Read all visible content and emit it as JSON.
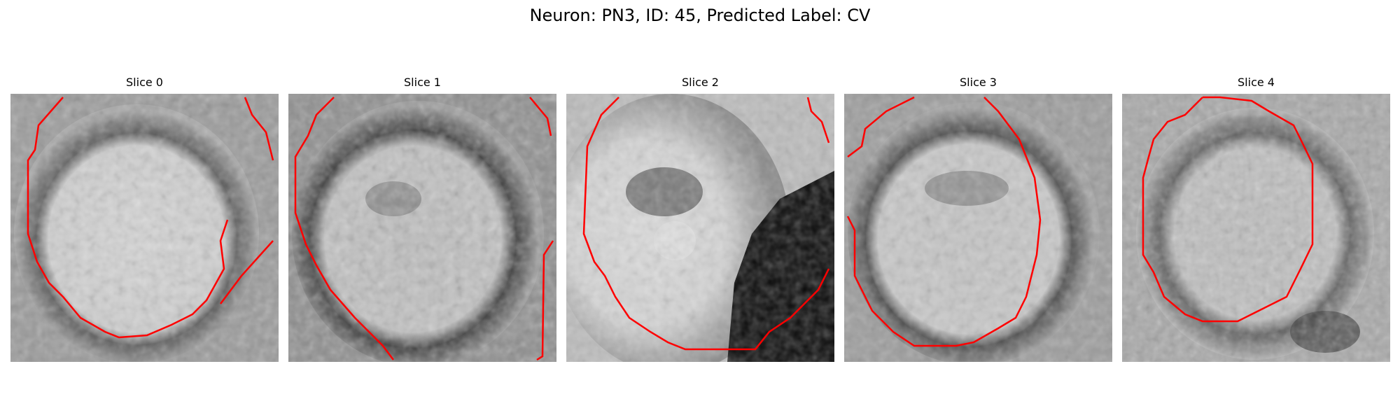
{
  "figure": {
    "title": "Neuron: PN3, ID: 45, Predicted Label: CV"
  },
  "slices": [
    {
      "title": "Slice 0"
    },
    {
      "title": "Slice 1"
    },
    {
      "title": "Slice 2"
    },
    {
      "title": "Slice 3"
    },
    {
      "title": "Slice 4"
    }
  ],
  "colors": {
    "contour": "#ff0000",
    "background": "#ffffff"
  }
}
